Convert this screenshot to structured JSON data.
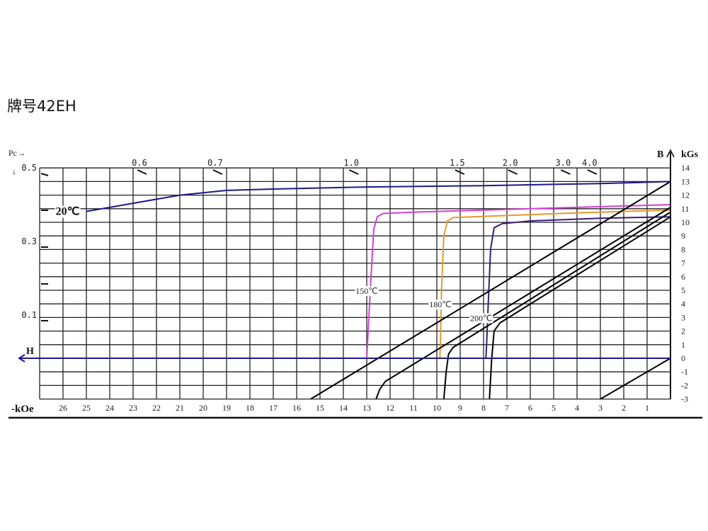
{
  "title": "牌号42EH",
  "chart_data": {
    "type": "line",
    "xlabel": "-kOe",
    "ylabel": "kGs",
    "y_axis_symbol": "B",
    "x_axis_symbol": "H",
    "pc_label": "Pc→",
    "x_range": [
      27,
      0
    ],
    "y_range": [
      -3,
      14
    ],
    "x_ticks": [
      26,
      25,
      24,
      23,
      22,
      21,
      20,
      19,
      18,
      17,
      16,
      15,
      14,
      13,
      12,
      11,
      10,
      9,
      8,
      7,
      6,
      5,
      4,
      3,
      2,
      1
    ],
    "y_ticks": [
      14,
      13,
      12,
      11,
      10,
      9,
      8,
      7,
      6,
      5,
      4,
      3,
      2,
      1,
      0,
      -1,
      -2,
      -3
    ],
    "grid": true,
    "pc_top_ticks": [
      "0.6",
      "0.7",
      "1.0",
      "1.5",
      "2.0",
      "3.0",
      "4.0"
    ],
    "pc_left_ticks": [
      {
        "value": 0.5,
        "label": "0.5"
      },
      {
        "value": 0.4,
        "label": ""
      },
      {
        "value": 0.3,
        "label": "0.3"
      },
      {
        "value": 0.2,
        "label": ""
      },
      {
        "value": 0.1,
        "label": "0.1"
      }
    ],
    "series": [
      {
        "name": "20℃",
        "kind": "intrinsic",
        "color": "#1a1a8c",
        "points": [
          [
            0,
            13
          ],
          [
            3,
            12.85
          ],
          [
            8,
            12.7
          ],
          [
            13,
            12.6
          ],
          [
            17,
            12.45
          ],
          [
            19,
            12.35
          ],
          [
            21,
            12.0
          ],
          [
            23,
            11.4
          ],
          [
            25,
            10.8
          ]
        ]
      },
      {
        "name": "150℃",
        "kind": "intrinsic",
        "color": "#d23fd6",
        "points": [
          [
            0,
            11.3
          ],
          [
            4,
            11.1
          ],
          [
            8,
            10.9
          ],
          [
            11,
            10.75
          ],
          [
            12.3,
            10.65
          ],
          [
            12.55,
            10.4
          ],
          [
            12.7,
            9.5
          ],
          [
            12.85,
            5
          ],
          [
            12.97,
            1
          ],
          [
            13.0,
            0
          ]
        ]
      },
      {
        "name": "180℃",
        "kind": "intrinsic",
        "color": "#e39a2e",
        "points": [
          [
            0,
            10.9
          ],
          [
            4,
            10.7
          ],
          [
            7,
            10.5
          ],
          [
            9.3,
            10.35
          ],
          [
            9.55,
            10.1
          ],
          [
            9.7,
            9
          ],
          [
            9.8,
            5
          ],
          [
            9.85,
            1
          ],
          [
            9.87,
            0
          ]
        ]
      },
      {
        "name": "200℃",
        "kind": "intrinsic",
        "color": "#3a1a7a",
        "points": [
          [
            0,
            10.4
          ],
          [
            3,
            10.3
          ],
          [
            6,
            10.1
          ],
          [
            7.2,
            9.9
          ],
          [
            7.55,
            9.6
          ],
          [
            7.7,
            8
          ],
          [
            7.8,
            4
          ],
          [
            7.87,
            1
          ],
          [
            7.9,
            0
          ]
        ]
      },
      {
        "kind": "normal",
        "color": "#000000",
        "points": [
          [
            0,
            13
          ],
          [
            15.4,
            -3
          ]
        ]
      },
      {
        "kind": "normal",
        "color": "#000000",
        "points": [
          [
            0,
            11.1
          ],
          [
            12.2,
            -1.7
          ],
          [
            12.45,
            -2.3
          ],
          [
            12.6,
            -3
          ]
        ]
      },
      {
        "kind": "normal",
        "color": "#000000",
        "points": [
          [
            0,
            10.75
          ],
          [
            9.3,
            0.8
          ],
          [
            9.5,
            0.3
          ],
          [
            9.6,
            -1
          ],
          [
            9.7,
            -3
          ]
        ]
      },
      {
        "kind": "normal",
        "color": "#000000",
        "points": [
          [
            0,
            10.4
          ],
          [
            7.3,
            2.6
          ],
          [
            7.55,
            2.0
          ],
          [
            7.65,
            0
          ],
          [
            7.75,
            -3
          ]
        ]
      },
      {
        "kind": "line",
        "color": "#000000",
        "points": [
          [
            0,
            0
          ],
          [
            3,
            -3
          ]
        ]
      }
    ],
    "labels": [
      {
        "text": "20℃",
        "at": [
          25.8,
          10.8
        ],
        "color": "#111111"
      },
      {
        "text": "150℃",
        "at": [
          13.0,
          5.0
        ],
        "color": "#222222"
      },
      {
        "text": "180℃",
        "at": [
          9.85,
          4.0
        ],
        "color": "#222222"
      },
      {
        "text": "200℃",
        "at": [
          8.1,
          3.0
        ],
        "color": "#222222"
      }
    ],
    "h_axis_color": "#1a1a8c"
  }
}
